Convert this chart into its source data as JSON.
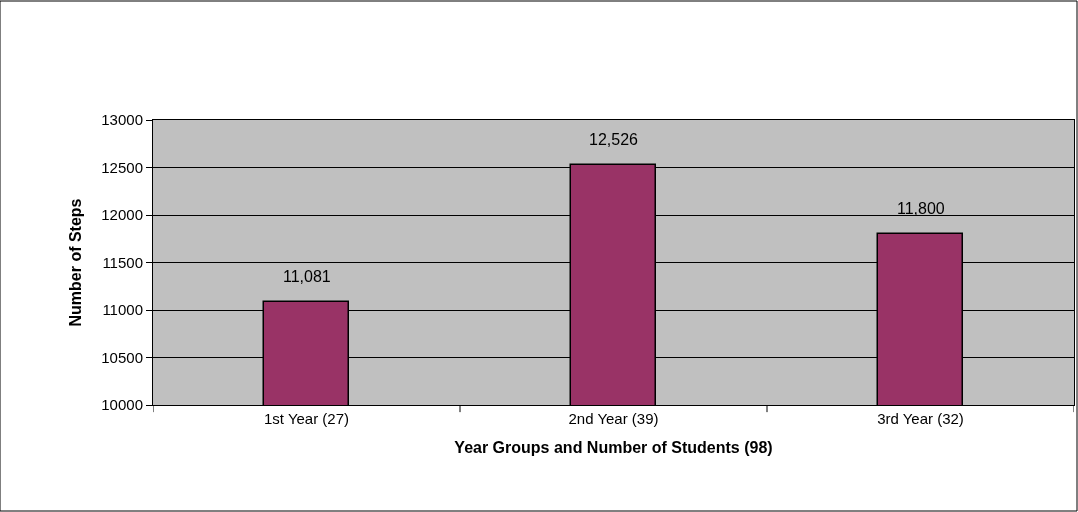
{
  "chart_data": {
    "type": "bar",
    "categories": [
      "1st Year (27)",
      "2nd Year (39)",
      "3rd Year (32)"
    ],
    "values": [
      11081,
      12526,
      11800
    ],
    "value_labels": [
      "11,081",
      "12,526",
      "11,800"
    ],
    "color": "#993366",
    "xlabel": "Year Groups and Number of Students (98)",
    "ylabel": "Number of Steps",
    "ylim": [
      10000,
      13000
    ],
    "yticks": [
      10000,
      10500,
      11000,
      11500,
      12000,
      12500,
      13000
    ],
    "grid": "y",
    "legend": false
  }
}
